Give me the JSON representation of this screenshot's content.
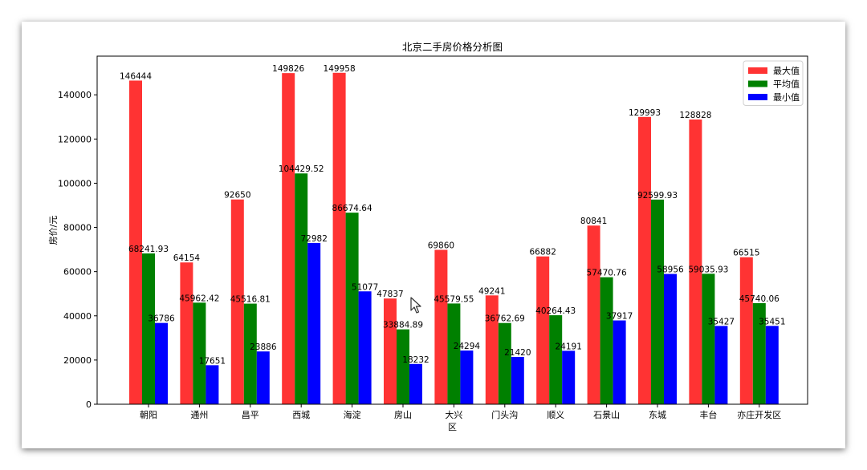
{
  "chart_data": {
    "type": "bar",
    "title": "北京二手房价格分析图",
    "xlabel": "区",
    "ylabel": "房价/元",
    "ylim": [
      0,
      157500
    ],
    "yticks": [
      0,
      20000,
      40000,
      60000,
      80000,
      100000,
      120000,
      140000
    ],
    "categories": [
      "朝阳",
      "通州",
      "昌平",
      "西城",
      "海淀",
      "房山",
      "大兴",
      "门头沟",
      "顺义",
      "石景山",
      "东城",
      "丰台",
      "亦庄开发区"
    ],
    "series": [
      {
        "name": "最大值",
        "color": "#ff3333",
        "values": [
          146444,
          64154,
          92650,
          149826,
          149958,
          47837,
          69860,
          49241,
          66882,
          80841,
          129993,
          128828,
          66515
        ],
        "labels": [
          "146444",
          "64154",
          "92650",
          "149826",
          "149958",
          "47837",
          "69860",
          "49241",
          "66882",
          "80841",
          "129993",
          "128828",
          "66515"
        ]
      },
      {
        "name": "平均值",
        "color": "#008000",
        "values": [
          68241.93,
          45962.42,
          45516.81,
          104429.52,
          86674.64,
          33884.89,
          45579.55,
          36762.69,
          40264.43,
          57470.76,
          92599.93,
          59035.93,
          45740.06
        ],
        "labels": [
          "68241.93",
          "45962.42",
          "45516.81",
          "104429.52",
          "86674.64",
          "33884.89",
          "45579.55",
          "36762.69",
          "40264.43",
          "57470.76",
          "92599.93",
          "59035.93",
          "45740.06"
        ]
      },
      {
        "name": "最小值",
        "color": "#0000ff",
        "values": [
          36786,
          17651,
          23886,
          72982,
          51077,
          18232,
          24294,
          21420,
          24191,
          37917,
          58956,
          35427,
          35451
        ],
        "labels": [
          "36786",
          "17651",
          "23886",
          "72982",
          "51077",
          "18232",
          "24294",
          "21420",
          "24191",
          "37917",
          "58956",
          "35427",
          "35451"
        ]
      }
    ],
    "legend_position": "top-right",
    "grid": false
  }
}
